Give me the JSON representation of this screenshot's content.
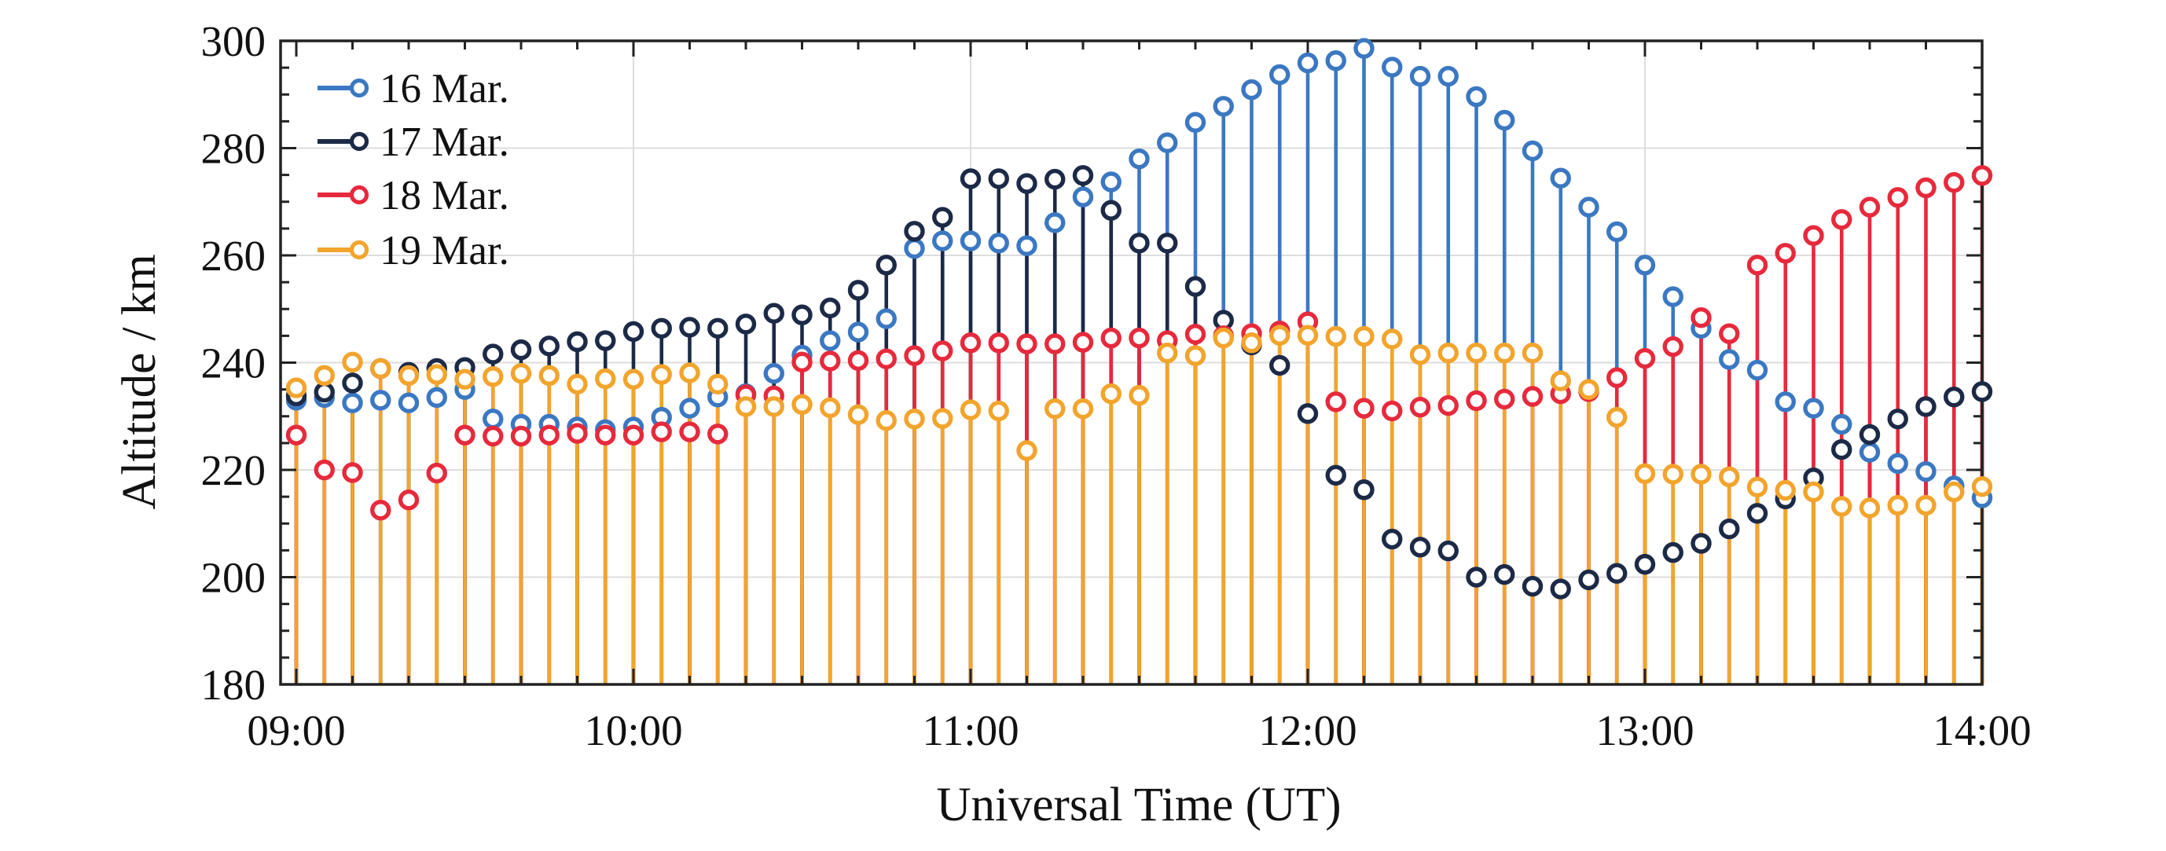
{
  "chart_data": {
    "type": "stem",
    "title": "",
    "xlabel": "Universal Time (UT)",
    "ylabel": "Altitude / km",
    "x_tick_labels": [
      "09:00",
      "10:00",
      "11:00",
      "12:00",
      "13:00",
      "14:00"
    ],
    "y_tick_labels": [
      "180",
      "200",
      "220",
      "240",
      "260",
      "280",
      "300"
    ],
    "y_ticks": [
      180,
      200,
      220,
      240,
      260,
      280,
      300
    ],
    "ylim": [
      180,
      300
    ],
    "baseline": 180,
    "grid": true,
    "legend_position": "top-left",
    "x_interval_minutes": 5,
    "times": [
      "09:00",
      "09:05",
      "09:10",
      "09:15",
      "09:20",
      "09:25",
      "09:30",
      "09:35",
      "09:40",
      "09:45",
      "09:50",
      "09:55",
      "10:00",
      "10:05",
      "10:10",
      "10:15",
      "10:20",
      "10:25",
      "10:30",
      "10:35",
      "10:40",
      "10:45",
      "10:50",
      "10:55",
      "11:00",
      "11:05",
      "11:10",
      "11:15",
      "11:20",
      "11:25",
      "11:30",
      "11:35",
      "11:40",
      "11:45",
      "11:50",
      "11:55",
      "12:00",
      "12:05",
      "12:10",
      "12:15",
      "12:20",
      "12:25",
      "12:30",
      "12:35",
      "12:40",
      "12:45",
      "12:50",
      "12:55",
      "13:00",
      "13:05",
      "13:10",
      "13:15",
      "13:20",
      "13:25",
      "13:30",
      "13:35",
      "13:40",
      "13:45",
      "13:50",
      "13:55",
      "14:00"
    ],
    "series": [
      {
        "name": "16 Mar.",
        "color": "#3B78C2",
        "values": [
          233.0,
          233.5,
          232.5,
          233.0,
          232.5,
          233.5,
          235.0,
          229.5,
          228.5,
          228.5,
          228.0,
          227.5,
          228.0,
          229.8,
          231.5,
          233.6,
          234.2,
          238.0,
          241.4,
          244.1,
          245.7,
          248.2,
          261.3,
          262.7,
          262.7,
          262.3,
          261.8,
          266.1,
          270.9,
          273.7,
          278.0,
          281.0,
          284.8,
          287.8,
          290.9,
          293.7,
          295.9,
          296.3,
          298.6,
          295.1,
          293.4,
          293.4,
          289.6,
          285.2,
          279.5,
          274.4,
          269.0,
          264.4,
          258.2,
          252.3,
          246.4,
          240.6,
          238.6,
          232.7,
          231.5,
          228.5,
          223.3,
          221.2,
          219.7,
          217.0,
          214.8
        ]
      },
      {
        "name": "17 Mar.",
        "color": "#1C2A47",
        "values": [
          233.8,
          234.5,
          236.2,
          238.9,
          238.2,
          238.9,
          239.1,
          241.6,
          242.4,
          243.1,
          243.9,
          244.1,
          245.8,
          246.4,
          246.6,
          246.4,
          247.2,
          249.2,
          248.9,
          250.2,
          253.5,
          258.2,
          264.5,
          267.1,
          274.3,
          274.3,
          273.4,
          274.2,
          274.9,
          268.4,
          262.3,
          262.3,
          254.2,
          247.9,
          243.3,
          239.5,
          230.5,
          219.0,
          216.3,
          207.1,
          205.6,
          204.9,
          200.0,
          200.5,
          198.3,
          197.8,
          199.5,
          200.7,
          202.4,
          204.6,
          206.3,
          209.0,
          211.9,
          214.6,
          218.5,
          223.8,
          226.6,
          229.5,
          231.8,
          233.6,
          234.6
        ]
      },
      {
        "name": "18 Mar.",
        "color": "#E62A3C",
        "values": [
          226.5,
          220.0,
          219.5,
          212.5,
          214.4,
          219.4,
          226.5,
          226.3,
          226.3,
          226.5,
          226.8,
          226.5,
          226.5,
          227.1,
          227.1,
          226.7,
          234.0,
          233.8,
          240.1,
          240.3,
          240.4,
          240.7,
          241.3,
          242.2,
          243.7,
          243.7,
          243.5,
          243.5,
          243.8,
          244.6,
          244.6,
          244.1,
          245.3,
          245.0,
          245.4,
          245.9,
          247.6,
          232.7,
          231.5,
          231.0,
          231.7,
          232.0,
          232.9,
          233.2,
          233.7,
          234.2,
          234.6,
          237.2,
          240.8,
          243.0,
          248.4,
          245.4,
          258.2,
          260.4,
          263.7,
          266.7,
          269.0,
          270.8,
          272.6,
          273.6,
          274.9
        ]
      },
      {
        "name": "19 Mar.",
        "color": "#F2A42C",
        "values": [
          235.3,
          237.6,
          240.1,
          238.9,
          237.6,
          237.8,
          236.9,
          237.4,
          238.0,
          237.6,
          236.0,
          237.0,
          236.9,
          237.8,
          238.1,
          236.0,
          231.8,
          231.8,
          232.2,
          231.6,
          230.3,
          229.2,
          229.5,
          229.6,
          231.2,
          231.0,
          223.6,
          231.4,
          231.4,
          234.2,
          233.9,
          241.8,
          241.3,
          244.6,
          243.7,
          245.1,
          245.1,
          244.9,
          244.9,
          244.4,
          241.5,
          241.8,
          241.8,
          241.8,
          241.8,
          236.6,
          235.0,
          229.8,
          219.3,
          219.2,
          219.2,
          218.7,
          216.8,
          216.2,
          215.9,
          213.2,
          212.9,
          213.4,
          213.4,
          215.9,
          216.9
        ]
      }
    ],
    "style": {
      "grid_color": "#DDDDDD",
      "axis_color": "#222222",
      "text_color": "#111111",
      "background": "#FFFFFF"
    }
  }
}
